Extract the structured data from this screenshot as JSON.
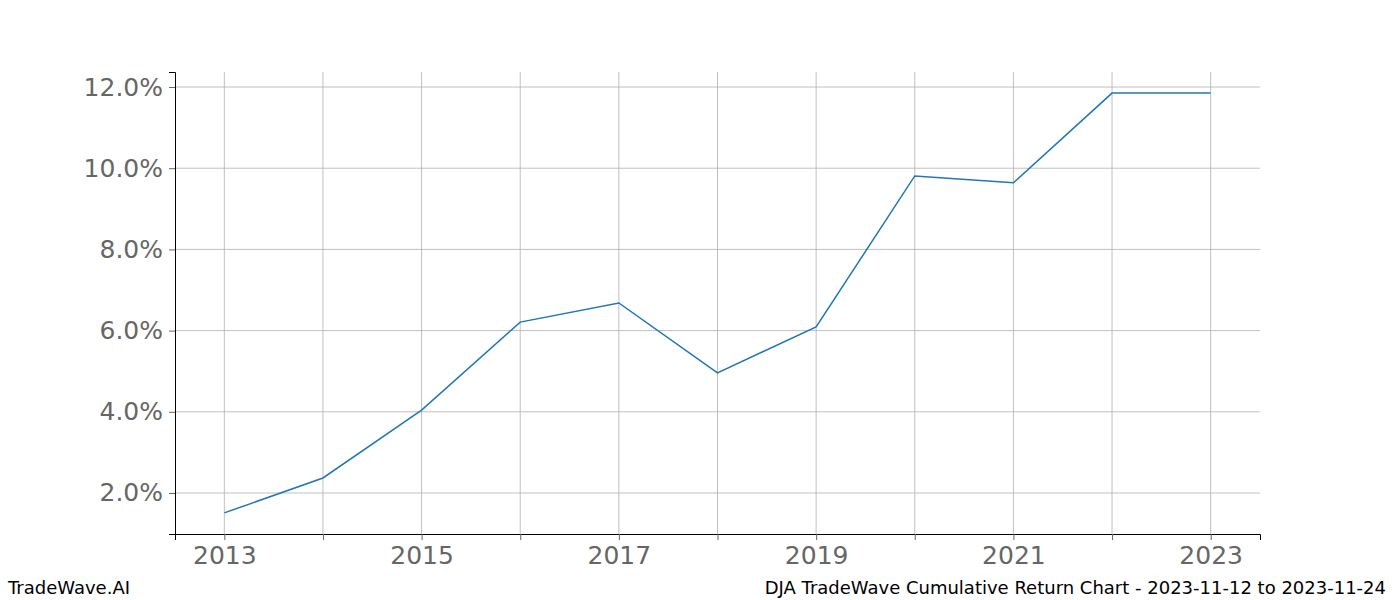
{
  "chart_data": {
    "type": "line",
    "title": "DJA TradeWave Cumulative Return Chart - 2023-11-12 to 2023-11-24",
    "annotations": [
      "TradeWave.AI"
    ],
    "x": [
      2013,
      2014,
      2015,
      2016,
      2017,
      2018,
      2019,
      2020,
      2021,
      2022,
      2023
    ],
    "values": [
      1.51,
      2.37,
      4.04,
      6.21,
      6.68,
      4.96,
      6.09,
      9.81,
      9.64,
      11.85,
      11.85
    ],
    "color": "#1f77b4",
    "xlim": [
      2012.5,
      2023.5
    ],
    "xticks": [
      2013,
      {
        "value": 2014,
        "label": null
      },
      2015,
      {
        "value": 2016,
        "label": null
      },
      2017,
      {
        "value": 2018,
        "label": null
      },
      2019,
      {
        "value": 2020,
        "label": null
      },
      2021,
      {
        "value": 2022,
        "label": null
      },
      2023
    ],
    "ylim": [
      0.99,
      12.37
    ],
    "yticks": [
      {
        "value": 2,
        "label": "2.0%"
      },
      {
        "value": 4,
        "label": "4.0%"
      },
      {
        "value": 6,
        "label": "6.0%"
      },
      {
        "value": 8,
        "label": "8.0%"
      },
      {
        "value": 10,
        "label": "10.0%"
      },
      {
        "value": 12,
        "label": "12.0%"
      }
    ],
    "grid": true
  }
}
